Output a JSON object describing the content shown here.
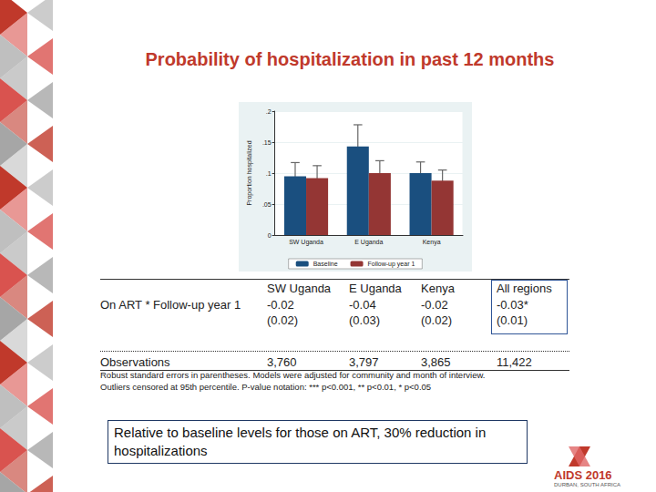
{
  "chart_data": {
    "type": "bar",
    "categories": [
      "SW Uganda",
      "E Uganda",
      "Kenya"
    ],
    "series": [
      {
        "name": "Baseline",
        "color": "#1a4f7f",
        "values": [
          0.095,
          0.143,
          0.1
        ],
        "ci": [
          [
            0.075,
            0.117
          ],
          [
            0.11,
            0.178
          ],
          [
            0.082,
            0.118
          ]
        ]
      },
      {
        "name": "Follow-up year 1",
        "color": "#943634",
        "values": [
          0.092,
          0.1,
          0.088
        ],
        "ci": [
          [
            0.075,
            0.112
          ],
          [
            0.082,
            0.12
          ],
          [
            0.072,
            0.105
          ]
        ]
      }
    ],
    "y_label": "Proportion hospitalized",
    "ylim": [
      0,
      0.2
    ],
    "yticks": [
      0,
      {
        "value": 0.05,
        "label": ".05"
      },
      {
        "value": 0.1,
        "label": ".1"
      },
      {
        "value": 0.15,
        "label": ".15"
      },
      {
        "value": 0.2,
        "label": ".2"
      }
    ],
    "grid": true,
    "legend": "bottom"
  },
  "page": {
    "title": "Probability of hospitalization in past 12 months",
    "table": {
      "header": [
        null,
        "SW Uganda",
        "E Uganda",
        "Kenya",
        "All regions"
      ],
      "rows": [
        [
          "On ART * Follow-up year 1",
          "-0.02",
          "-0.04",
          "-0.02",
          "-0.03*"
        ],
        [
          null,
          "(0.02)",
          "(0.03)",
          "(0.02)",
          "(0.01)"
        ],
        [
          "Observations",
          "3,760",
          "3,797",
          "3,865",
          "11,422"
        ]
      ]
    },
    "notes": [
      "Robust standard errors in parentheses. Models were adjusted for community and month of interview.",
      "Outliers censored at 95th percentile. P-value notation: *** p<0.001, ** p<0.01, * p<0.05"
    ],
    "highlight": "Relative to baseline levels for those on ART, 30% reduction in hospitalizations",
    "logo": [
      "AIDS 2016",
      "DURBAN, SOUTH AFRICA"
    ]
  }
}
